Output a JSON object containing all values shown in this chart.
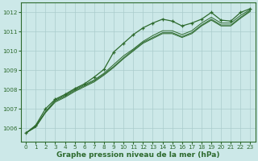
{
  "background_color": "#cce8e8",
  "plot_bg_color": "#cce8e8",
  "grid_color": "#aacccc",
  "line_color": "#2d6a2d",
  "marker_color": "#2d6a2d",
  "xlim": [
    -0.5,
    23.5
  ],
  "ylim": [
    1005.3,
    1012.5
  ],
  "yticks": [
    1006,
    1007,
    1008,
    1009,
    1010,
    1011,
    1012
  ],
  "xticks": [
    0,
    1,
    2,
    3,
    4,
    5,
    6,
    7,
    8,
    9,
    10,
    11,
    12,
    13,
    14,
    15,
    16,
    17,
    18,
    19,
    20,
    21,
    22,
    23
  ],
  "series": [
    [
      1005.75,
      1006.15,
      1007.0,
      1007.5,
      1007.75,
      1008.05,
      1008.3,
      1008.65,
      1009.05,
      1009.95,
      1010.4,
      1010.85,
      1011.2,
      1011.45,
      1011.65,
      1011.55,
      1011.3,
      1011.45,
      1011.65,
      1012.0,
      1011.6,
      1011.55,
      1012.0,
      1012.2
    ],
    [
      1005.75,
      1006.1,
      1006.85,
      1007.45,
      1007.7,
      1008.0,
      1008.25,
      1008.5,
      1008.85,
      1009.3,
      1009.75,
      1010.1,
      1010.5,
      1010.8,
      1011.05,
      1011.05,
      1010.85,
      1011.05,
      1011.45,
      1011.75,
      1011.45,
      1011.45,
      1011.85,
      1012.15
    ],
    [
      1005.75,
      1006.05,
      1006.8,
      1007.35,
      1007.6,
      1007.9,
      1008.15,
      1008.4,
      1008.75,
      1009.15,
      1009.6,
      1010.0,
      1010.4,
      1010.65,
      1010.9,
      1010.9,
      1010.7,
      1010.9,
      1011.3,
      1011.6,
      1011.3,
      1011.3,
      1011.7,
      1012.05
    ],
    [
      1005.75,
      1006.08,
      1006.83,
      1007.4,
      1007.65,
      1007.95,
      1008.2,
      1008.45,
      1008.8,
      1009.2,
      1009.65,
      1010.05,
      1010.45,
      1010.7,
      1010.95,
      1010.95,
      1010.75,
      1010.95,
      1011.35,
      1011.65,
      1011.35,
      1011.35,
      1011.75,
      1012.1
    ]
  ],
  "xlabel": "Graphe pression niveau de la mer (hPa)",
  "xlabel_fontsize": 6.5,
  "tick_fontsize": 5.2,
  "tick_color": "#2d6a2d",
  "spine_color": "#2d6a2d"
}
